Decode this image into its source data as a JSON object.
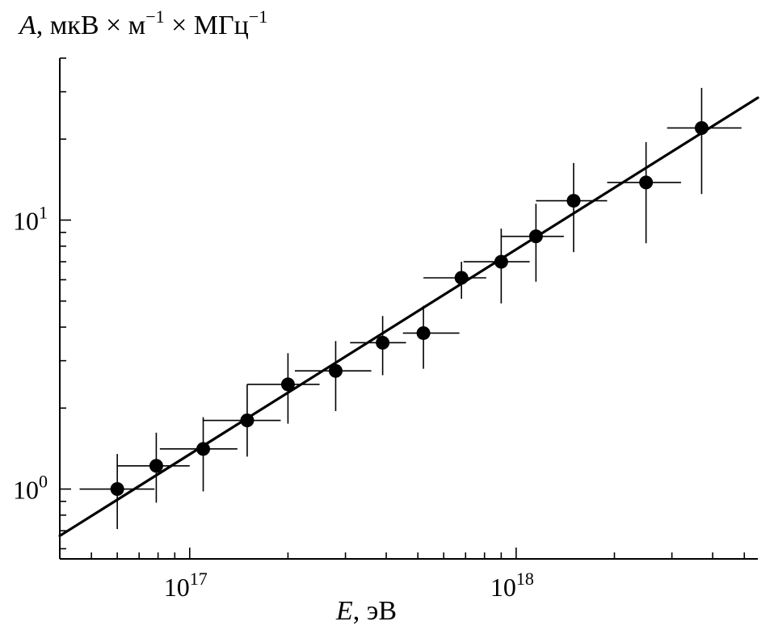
{
  "chart_data": {
    "type": "scatter",
    "title": "",
    "xlabel": {
      "symbol": "E",
      "unit": ", эВ"
    },
    "ylabel": {
      "symbol": "A",
      "unit_parts": [
        ", мкВ × м",
        "−1",
        " × МГц",
        "−1"
      ]
    },
    "x_scale": "log",
    "y_scale": "log",
    "xlim": [
      4e+16,
      5.5e+18
    ],
    "ylim": [
      0.55,
      40
    ],
    "x_ticks": [
      {
        "value": 1e+17,
        "base": "10",
        "exp": "17"
      },
      {
        "value": 1e+18,
        "base": "10",
        "exp": "18"
      }
    ],
    "y_ticks": [
      {
        "value": 1,
        "base": "10",
        "exp": "0"
      },
      {
        "value": 10,
        "base": "10",
        "exp": "1"
      }
    ],
    "grid": false,
    "points": [
      {
        "x": 6e+16,
        "y": 1.0,
        "x_err": [
          4.6e+16,
          7.8e+16
        ],
        "y_err": [
          0.71,
          1.35
        ]
      },
      {
        "x": 7.9e+16,
        "y": 1.22,
        "x_err": [
          6e+16,
          1e+17
        ],
        "y_err": [
          0.89,
          1.62
        ]
      },
      {
        "x": 1.1e+17,
        "y": 1.41,
        "x_err": [
          8.1e+16,
          1.4e+17
        ],
        "y_err": [
          0.98,
          1.85
        ]
      },
      {
        "x": 1.5e+17,
        "y": 1.8,
        "x_err": [
          1.1e+17,
          1.9e+17
        ],
        "y_err": [
          1.32,
          2.45
        ]
      },
      {
        "x": 2e+17,
        "y": 2.45,
        "x_err": [
          1.5e+17,
          2.5e+17
        ],
        "y_err": [
          1.75,
          3.2
        ]
      },
      {
        "x": 2.8e+17,
        "y": 2.75,
        "x_err": [
          2.1e+17,
          3.6e+17
        ],
        "y_err": [
          1.95,
          3.55
        ]
      },
      {
        "x": 3.9e+17,
        "y": 3.5,
        "x_err": [
          3.1e+17,
          4.6e+17
        ],
        "y_err": [
          2.65,
          4.4
        ]
      },
      {
        "x": 5.2e+17,
        "y": 3.8,
        "x_err": [
          4.5e+17,
          6.7e+17
        ],
        "y_err": [
          2.8,
          4.8
        ]
      },
      {
        "x": 6.8e+17,
        "y": 6.1,
        "x_err": [
          5.2e+17,
          8.1e+17
        ],
        "y_err": [
          5.1,
          7.0
        ]
      },
      {
        "x": 9e+17,
        "y": 7.0,
        "x_err": [
          6.9e+17,
          1.1e+18
        ],
        "y_err": [
          4.9,
          9.3
        ]
      },
      {
        "x": 1.15e+18,
        "y": 8.7,
        "x_err": [
          9e+17,
          1.4e+18
        ],
        "y_err": [
          5.9,
          11.5
        ]
      },
      {
        "x": 1.5e+18,
        "y": 11.8,
        "x_err": [
          1.15e+18,
          1.9e+18
        ],
        "y_err": [
          7.6,
          16.3
        ]
      },
      {
        "x": 2.5e+18,
        "y": 13.8,
        "x_err": [
          1.9e+18,
          3.2e+18
        ],
        "y_err": [
          8.2,
          19.5
        ]
      },
      {
        "x": 3.7e+18,
        "y": 22.0,
        "x_err": [
          2.9e+18,
          4.9e+18
        ],
        "y_err": [
          12.5,
          31.0
        ]
      }
    ],
    "fit_line": [
      {
        "x": 4e+16,
        "y": 0.67
      },
      {
        "x": 5.5e+18,
        "y": 28.5
      }
    ]
  }
}
